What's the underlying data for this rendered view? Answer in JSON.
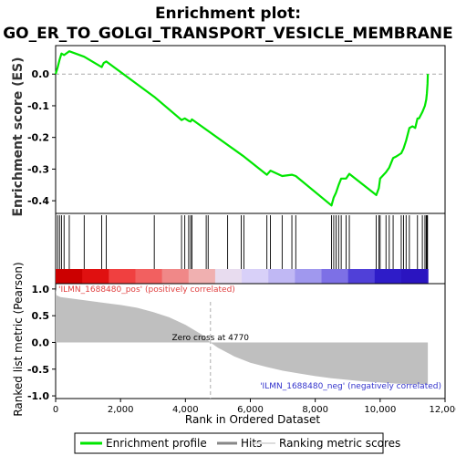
{
  "title_line1": "Enrichment plot:",
  "title_line2": "GO_ER_TO_GOLGI_TRANSPORT_VESICLE_MEMBRANE",
  "colors": {
    "enrichment_line": "#00e600",
    "hits": "#000000",
    "metric_fill": "#bfbfbf",
    "pos_text": "#e04040",
    "neg_text": "#3333cc",
    "zero_line": "#bbbbbb"
  },
  "chart_data": [
    {
      "type": "line",
      "name": "enrichment",
      "ylabel": "Enrichment score (ES)",
      "xlim": [
        0,
        12000
      ],
      "ylim": [
        -0.44,
        0.09
      ],
      "yticks": [
        0.0,
        -0.1,
        -0.2,
        -0.3,
        -0.4
      ],
      "ytick_labels": [
        "0.0",
        "-0.1",
        "-0.2",
        "-0.3",
        "-0.4"
      ],
      "grid": false,
      "series": [
        {
          "name": "Enrichment profile",
          "x": [
            0,
            60,
            120,
            180,
            260,
            420,
            880,
            1420,
            1480,
            1560,
            3040,
            3880,
            3980,
            4100,
            4160,
            4200,
            5770,
            6510,
            6620,
            6980,
            7280,
            7400,
            8500,
            8570,
            8640,
            8720,
            8800,
            8950,
            9050,
            9880,
            9960,
            10000,
            10180,
            10280,
            10400,
            10500,
            10650,
            10720,
            10800,
            10900,
            11000,
            11080,
            11150,
            11200,
            11300,
            11380,
            11420,
            11440,
            11460,
            11470
          ],
          "y": [
            0.0,
            0.02,
            0.045,
            0.065,
            0.06,
            0.072,
            0.055,
            0.022,
            0.035,
            0.04,
            -0.072,
            -0.145,
            -0.14,
            -0.148,
            -0.15,
            -0.143,
            -0.258,
            -0.318,
            -0.305,
            -0.322,
            -0.318,
            -0.322,
            -0.415,
            -0.39,
            -0.375,
            -0.35,
            -0.33,
            -0.33,
            -0.315,
            -0.382,
            -0.36,
            -0.33,
            -0.31,
            -0.295,
            -0.265,
            -0.26,
            -0.25,
            -0.235,
            -0.21,
            -0.17,
            -0.165,
            -0.17,
            -0.14,
            -0.14,
            -0.12,
            -0.1,
            -0.08,
            -0.06,
            -0.03,
            0.0
          ]
        }
      ]
    },
    {
      "type": "bar",
      "name": "hits",
      "xlim": [
        0,
        12000
      ],
      "x": [
        60,
        120,
        180,
        260,
        420,
        880,
        1420,
        1560,
        3040,
        3880,
        3980,
        4100,
        4160,
        4200,
        4640,
        4700,
        5300,
        5720,
        5800,
        6510,
        6620,
        6980,
        7280,
        7400,
        8500,
        8570,
        8640,
        8720,
        8800,
        8950,
        9050,
        9880,
        9960,
        10000,
        10180,
        10280,
        10400,
        10650,
        10720,
        10800,
        10900,
        11150,
        11300,
        11380,
        11420,
        11440,
        11460
      ],
      "heatmap_colors": [
        "#cc0000",
        "#e01010",
        "#f04040",
        "#f26060",
        "#f08888",
        "#f0b0b0",
        "#e8dcef",
        "#d8d0f8",
        "#c0b8f4",
        "#a098ee",
        "#7d70e6",
        "#5040d8",
        "#2e1cc8",
        "#2a14c0"
      ]
    },
    {
      "type": "area",
      "name": "ranked-metric",
      "xlabel": "Rank in Ordered Dataset",
      "ylabel": "Ranked list metric (Pearson)",
      "xlim": [
        0,
        12000
      ],
      "ylim": [
        -1.05,
        1.1
      ],
      "xticks": [
        0,
        2000,
        4000,
        6000,
        8000,
        10000,
        12000
      ],
      "xtick_labels": [
        "0",
        "2,000",
        "4,000",
        "6,000",
        "8,000",
        "10,000",
        "12,000"
      ],
      "yticks": [
        1.0,
        0.5,
        0.0,
        -0.5,
        -1.0
      ],
      "ytick_labels": [
        "1.0",
        "0.5",
        "0.0",
        "-0.5",
        "-1.0"
      ],
      "x": [
        0,
        30,
        150,
        500,
        1000,
        1500,
        2000,
        2500,
        3000,
        3500,
        4000,
        4500,
        4770,
        5000,
        5500,
        6000,
        6500,
        7000,
        7500,
        8000,
        8500,
        9000,
        9500,
        10000,
        10500,
        11000,
        11470
      ],
      "y": [
        1.0,
        0.88,
        0.85,
        0.82,
        0.78,
        0.74,
        0.7,
        0.65,
        0.57,
        0.47,
        0.33,
        0.15,
        0.0,
        -0.1,
        -0.26,
        -0.38,
        -0.46,
        -0.53,
        -0.58,
        -0.63,
        -0.67,
        -0.7,
        -0.73,
        -0.75,
        -0.77,
        -0.78,
        -0.78
      ],
      "zero_cross_rank": 4770,
      "annotations": {
        "zero_cross": "Zero cross at 4770",
        "pos_label": "'ILMN_1688480_pos' (positively correlated)",
        "neg_label": "'ILMN_1688480_neg' (negatively correlated)"
      }
    }
  ],
  "legend": {
    "placement": "bottom",
    "items": [
      {
        "label": "Enrichment profile",
        "color": "#00e600"
      },
      {
        "label": "Hits",
        "color": "#888888"
      },
      {
        "label": "Ranking metric scores",
        "color": "#dddddd"
      }
    ]
  }
}
